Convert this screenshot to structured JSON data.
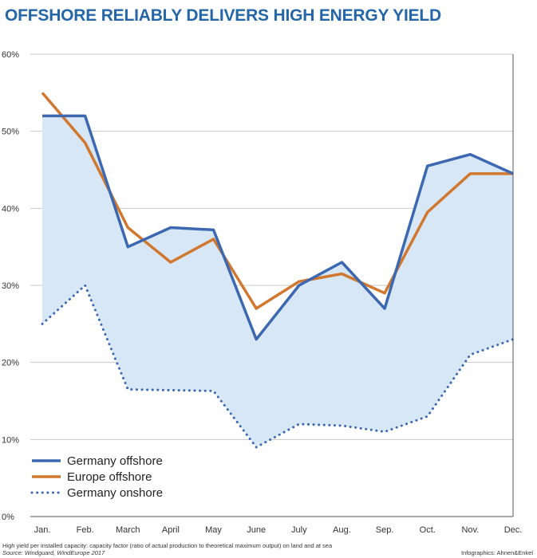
{
  "title": "OFFSHORE RELIABLY DELIVERS HIGH ENERGY YIELD",
  "footer": {
    "description": "High yield per installed capacity: capacity factor (ratio of actual production to theoretical maximum output) on land and at sea",
    "source": "Source: Windguard, WindEurope 2017",
    "credit": "Infographics: Ahnen&Enkel"
  },
  "colors": {
    "germany_offshore": "#3c68b1",
    "europe_offshore": "#d0782f",
    "germany_onshore": "#3c68b1",
    "fill": "#d8e7f5",
    "grid": "#c8c8c8",
    "axis": "#555555"
  },
  "chart_data": {
    "type": "line",
    "title": "OFFSHORE RELIABLY DELIVERS HIGH ENERGY YIELD",
    "categories": [
      "Jan.",
      "Feb.",
      "March",
      "April",
      "May",
      "June",
      "July",
      "Aug.",
      "Sep.",
      "Oct.",
      "Nov.",
      "Dec."
    ],
    "ylim": [
      0,
      60
    ],
    "yticks": [
      0,
      10,
      20,
      30,
      40,
      50,
      60
    ],
    "ytick_labels": [
      "0%",
      "10%",
      "20%",
      "30%",
      "40%",
      "50%",
      "60%"
    ],
    "grid": true,
    "legend_position": "bottom-left",
    "series": [
      {
        "name": "Germany offshore",
        "style": "solid",
        "values": [
          52,
          52,
          35,
          37.5,
          37.2,
          23,
          30,
          33,
          27,
          45.5,
          47,
          44.5
        ]
      },
      {
        "name": "Europe offshore",
        "style": "solid",
        "values": [
          55,
          48.5,
          37.5,
          33,
          36,
          27,
          30.5,
          31.5,
          29,
          39.5,
          44.5,
          44.5
        ]
      },
      {
        "name": "Germany onshore",
        "style": "dotted",
        "values": [
          25,
          30,
          16.5,
          16.4,
          16.3,
          9,
          12,
          11.8,
          11,
          13,
          21,
          23
        ]
      }
    ],
    "shaded_area": "between Germany offshore and Germany onshore"
  }
}
